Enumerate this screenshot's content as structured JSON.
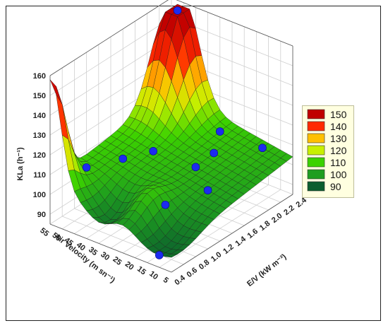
{
  "chart_data": {
    "type": "surface3d",
    "zlabel": "KLa (h⁻¹)",
    "xlabel": "E/V (kW m⁻³)",
    "ylabel": "Air Velocity (m sn⁻¹)",
    "z_ticks": [
      "90",
      "100",
      "110",
      "120",
      "130",
      "140",
      "150",
      "160"
    ],
    "x_ticks": [
      "0.4",
      "0.6",
      "0.8",
      "1.0",
      "1.2",
      "1.4",
      "1.6",
      "1.8",
      "2.0",
      "2.2",
      "2.4"
    ],
    "y_ticks": [
      "5",
      "10",
      "15",
      "20",
      "25",
      "30",
      "35",
      "40",
      "45",
      "50",
      "55"
    ],
    "xlim": [
      0.4,
      2.4
    ],
    "ylim": [
      5,
      55
    ],
    "zlim": [
      85,
      160
    ],
    "legend": {
      "placement": "right",
      "items": [
        {
          "label": "150",
          "color": "#c00000"
        },
        {
          "label": "140",
          "color": "#ff2a00"
        },
        {
          "label": "130",
          "color": "#ffc000"
        },
        {
          "label": "120",
          "color": "#c8f000"
        },
        {
          "label": "110",
          "color": "#3cd200"
        },
        {
          "label": "100",
          "color": "#1f9e1f"
        },
        {
          "label": "90",
          "color": "#0b5e2e"
        }
      ]
    },
    "points": [
      {
        "x": 2.3,
        "y": 50,
        "z": 155
      },
      {
        "x": 1.5,
        "y": 40,
        "z": 114
      },
      {
        "x": 1.2,
        "y": 45,
        "z": 116
      },
      {
        "x": 0.8,
        "y": 50,
        "z": 117
      },
      {
        "x": 2.2,
        "y": 30,
        "z": 117
      },
      {
        "x": 2.3,
        "y": 15,
        "z": 103
      },
      {
        "x": 1.9,
        "y": 25,
        "z": 111
      },
      {
        "x": 1.6,
        "y": 25,
        "z": 107
      },
      {
        "x": 1.4,
        "y": 15,
        "z": 102
      },
      {
        "x": 0.9,
        "y": 20,
        "z": 100
      },
      {
        "x": 0.4,
        "y": 10,
        "z": 99
      }
    ],
    "surface_note": "Response surface of KLa over E/V and air velocity"
  }
}
